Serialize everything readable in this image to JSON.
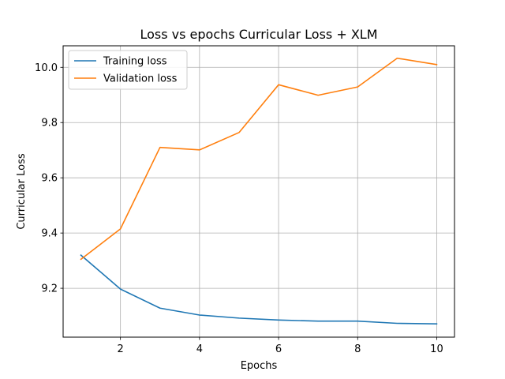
{
  "chart_data": {
    "type": "line",
    "title": "Loss vs epochs Curricular Loss + XLM",
    "xlabel": "Epochs",
    "ylabel": "Curricular Loss",
    "x": [
      1,
      2,
      3,
      4,
      5,
      6,
      7,
      8,
      9,
      10
    ],
    "xlim": [
      0.55,
      10.45
    ],
    "ylim": [
      9.023,
      10.078
    ],
    "xticks": [
      2,
      4,
      6,
      8,
      10
    ],
    "yticks": [
      9.2,
      9.4,
      9.6,
      9.8,
      10.0
    ],
    "xtick_labels": [
      "2",
      "4",
      "6",
      "8",
      "10"
    ],
    "ytick_labels": [
      "9.2",
      "9.4",
      "9.6",
      "9.8",
      "10.0"
    ],
    "grid": true,
    "legend_position": "top-left",
    "series": [
      {
        "name": "Training loss",
        "color": "#1f77b4",
        "values": [
          9.32,
          9.197,
          9.128,
          9.103,
          9.092,
          9.085,
          9.081,
          9.081,
          9.073,
          9.071
        ]
      },
      {
        "name": "Validation loss",
        "color": "#ff7f0e",
        "values": [
          9.305,
          9.415,
          9.71,
          9.701,
          9.764,
          9.937,
          9.899,
          9.929,
          10.033,
          10.01
        ]
      }
    ]
  }
}
